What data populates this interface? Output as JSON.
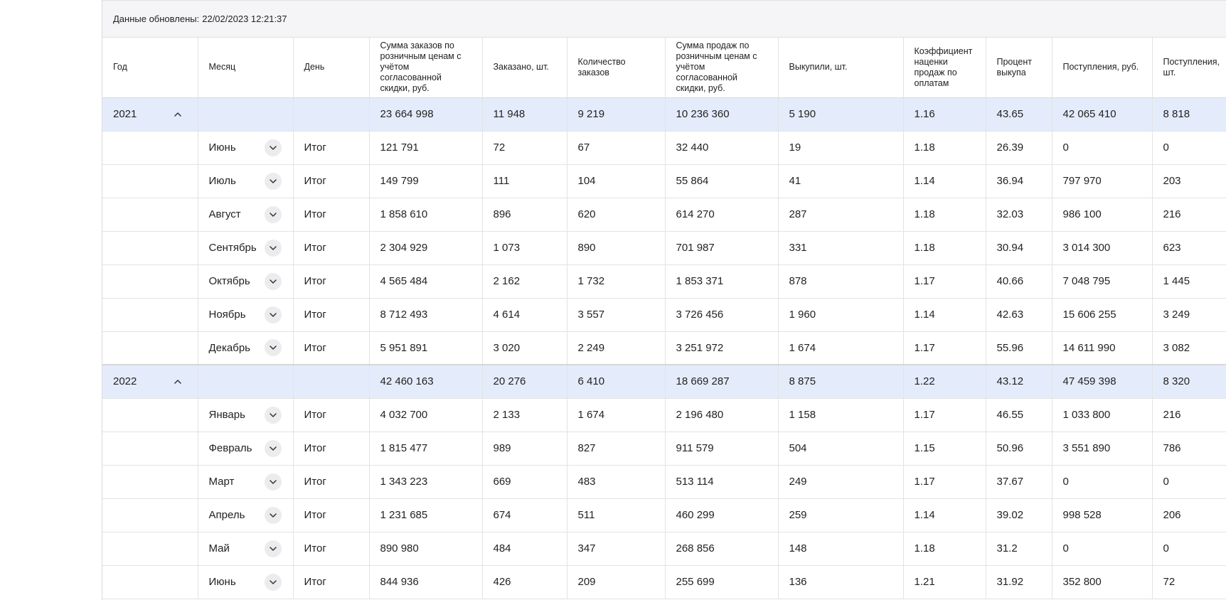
{
  "updated": {
    "label": "Данные обновлены:",
    "value": "22/02/2023 12:21:37"
  },
  "columns": [
    "Год",
    "Месяц",
    "День",
    "Сумма заказов по розничным ценам с учётом согласованной скидки, руб.",
    "Заказано, шт.",
    "Количество заказов",
    "Сумма продаж по розничным ценам с учётом согласованной скидки, руб.",
    "Выкупили, шт.",
    "Коэффициент наценки продаж по оплатам",
    "Процент выкупа",
    "Поступления, руб.",
    "Поступления, шт."
  ],
  "years": [
    {
      "year": "2021",
      "toggle_icon": "chevron-up-icon",
      "totals": [
        "23 664 998",
        "11 948",
        "9 219",
        "10 236 360",
        "5 190",
        "1.16",
        "43.65",
        "42 065 410",
        "8 818"
      ],
      "months": [
        {
          "month": "Июнь",
          "day": "Итог",
          "values": [
            "121 791",
            "72",
            "67",
            "32 440",
            "19",
            "1.18",
            "26.39",
            "0",
            "0"
          ]
        },
        {
          "month": "Июль",
          "day": "Итог",
          "values": [
            "149 799",
            "111",
            "104",
            "55 864",
            "41",
            "1.14",
            "36.94",
            "797 970",
            "203"
          ]
        },
        {
          "month": "Август",
          "day": "Итог",
          "values": [
            "1 858 610",
            "896",
            "620",
            "614 270",
            "287",
            "1.18",
            "32.03",
            "986 100",
            "216"
          ]
        },
        {
          "month": "Сентябрь",
          "day": "Итог",
          "values": [
            "2 304 929",
            "1 073",
            "890",
            "701 987",
            "331",
            "1.18",
            "30.94",
            "3 014 300",
            "623"
          ]
        },
        {
          "month": "Октябрь",
          "day": "Итог",
          "values": [
            "4 565 484",
            "2 162",
            "1 732",
            "1 853 371",
            "878",
            "1.17",
            "40.66",
            "7 048 795",
            "1 445"
          ]
        },
        {
          "month": "Ноябрь",
          "day": "Итог",
          "values": [
            "8 712 493",
            "4 614",
            "3 557",
            "3 726 456",
            "1 960",
            "1.14",
            "42.63",
            "15 606 255",
            "3 249"
          ]
        },
        {
          "month": "Декабрь",
          "day": "Итог",
          "values": [
            "5 951 891",
            "3 020",
            "2 249",
            "3 251 972",
            "1 674",
            "1.17",
            "55.96",
            "14 611 990",
            "3 082"
          ]
        }
      ]
    },
    {
      "year": "2022",
      "toggle_icon": "chevron-up-icon",
      "totals": [
        "42 460 163",
        "20 276",
        "6 410",
        "18 669 287",
        "8 875",
        "1.22",
        "43.12",
        "47 459 398",
        "8 320"
      ],
      "months": [
        {
          "month": "Январь",
          "day": "Итог",
          "values": [
            "4 032 700",
            "2 133",
            "1 674",
            "2 196 480",
            "1 158",
            "1.17",
            "46.55",
            "1 033 800",
            "216"
          ]
        },
        {
          "month": "Февраль",
          "day": "Итог",
          "values": [
            "1 815 477",
            "989",
            "827",
            "911 579",
            "504",
            "1.15",
            "50.96",
            "3 551 890",
            "786"
          ]
        },
        {
          "month": "Март",
          "day": "Итог",
          "values": [
            "1 343 223",
            "669",
            "483",
            "513 114",
            "249",
            "1.17",
            "37.67",
            "0",
            "0"
          ]
        },
        {
          "month": "Апрель",
          "day": "Итог",
          "values": [
            "1 231 685",
            "674",
            "511",
            "460 299",
            "259",
            "1.14",
            "39.02",
            "998 528",
            "206"
          ]
        },
        {
          "month": "Май",
          "day": "Итог",
          "values": [
            "890 980",
            "484",
            "347",
            "268 856",
            "148",
            "1.18",
            "31.2",
            "0",
            "0"
          ]
        },
        {
          "month": "Июнь",
          "day": "Итог",
          "values": [
            "844 936",
            "426",
            "209",
            "255 699",
            "136",
            "1.21",
            "31.92",
            "352 800",
            "72"
          ]
        }
      ]
    }
  ]
}
